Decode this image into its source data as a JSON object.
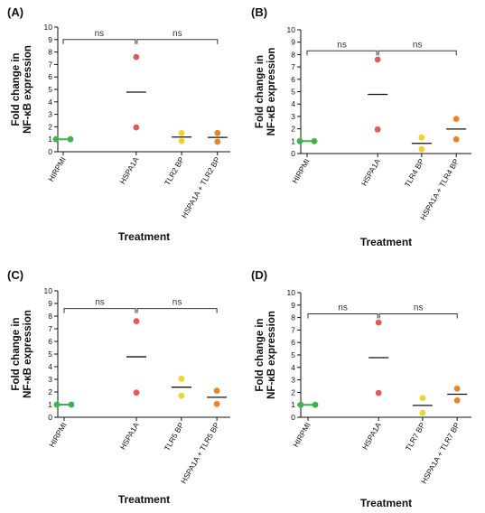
{
  "colors": {
    "HIRPMI": "#3cb44b",
    "HSPA1A": "#e05a5a",
    "TLR": "#f2d230",
    "COMBO": "#e8852a"
  },
  "chart_data": [
    {
      "type": "scatter",
      "panel": "(A)",
      "ylabel": "Fold change in NF-κB expression",
      "xlabel": "Treatment",
      "ylim": [
        0,
        10
      ],
      "yticks": [
        "0",
        "1",
        "2",
        "3",
        "4",
        "5",
        "6",
        "7",
        "8",
        "9",
        "10"
      ],
      "categories": [
        "HIRPMI",
        "HSPA1A",
        "TLR2 BP",
        "HSPA1A + TLR2 BP"
      ],
      "points": [
        [
          1.0,
          1.0
        ],
        [
          7.6,
          1.95
        ],
        [
          1.5,
          0.85
        ],
        [
          1.5,
          0.8
        ]
      ],
      "means": [
        1.0,
        4.78,
        1.18,
        1.15
      ],
      "brackets": [
        {
          "from": 0,
          "to": 1,
          "text": "ns"
        },
        {
          "from": 1,
          "to": 3,
          "text": "ns"
        }
      ],
      "bracket_level": 9.0
    },
    {
      "type": "scatter",
      "panel": "(B)",
      "ylabel": "Fold change in NF-κB expression",
      "xlabel": "Treatment",
      "ylim": [
        0,
        10
      ],
      "yticks": [
        "0",
        "1",
        "2",
        "3",
        "4",
        "5",
        "6",
        "7",
        "8",
        "9",
        "10"
      ],
      "categories": [
        "HIRPMI",
        "HSPA1A",
        "TLR4 BP",
        "HSPA1A + TLR4 BP"
      ],
      "points": [
        [
          1.0,
          1.0
        ],
        [
          7.6,
          1.95
        ],
        [
          1.3,
          0.35
        ],
        [
          2.8,
          1.15
        ]
      ],
      "means": [
        1.0,
        4.78,
        0.82,
        1.98
      ],
      "brackets": [
        {
          "from": 0,
          "to": 1,
          "text": "ns"
        },
        {
          "from": 1,
          "to": 3,
          "text": "ns"
        }
      ],
      "bracket_level": 8.3
    },
    {
      "type": "scatter",
      "panel": "(C)",
      "ylabel": "Fold change in NF-κB expression",
      "xlabel": "Treatment",
      "ylim": [
        0,
        10
      ],
      "yticks": [
        "0",
        "1",
        "2",
        "3",
        "4",
        "5",
        "6",
        "7",
        "8",
        "9",
        "10"
      ],
      "categories": [
        "HIRPMI",
        "HSPA1A",
        "TLR5 BP",
        "HSPA1A + TLR5 BP"
      ],
      "points": [
        [
          1.0,
          1.0
        ],
        [
          7.6,
          1.95
        ],
        [
          3.05,
          1.7
        ],
        [
          2.1,
          1.05
        ]
      ],
      "means": [
        1.0,
        4.78,
        2.38,
        1.58
      ],
      "brackets": [
        {
          "from": 0,
          "to": 1,
          "text": "ns"
        },
        {
          "from": 1,
          "to": 3,
          "text": "ns"
        }
      ],
      "bracket_level": 8.6
    },
    {
      "type": "scatter",
      "panel": "(D)",
      "ylabel": "Fold change in NF-κB expression",
      "xlabel": "Treatment",
      "ylim": [
        0,
        10
      ],
      "yticks": [
        "0",
        "1",
        "2",
        "3",
        "4",
        "5",
        "6",
        "7",
        "8",
        "9",
        "10"
      ],
      "categories": [
        "HIRPMI",
        "HSPA1A",
        "TLR7 BP",
        "HSPA1A + TLR7 BP"
      ],
      "points": [
        [
          1.0,
          1.0
        ],
        [
          7.6,
          1.95
        ],
        [
          1.55,
          0.35
        ],
        [
          2.3,
          1.35
        ]
      ],
      "means": [
        1.0,
        4.78,
        0.95,
        1.85
      ],
      "brackets": [
        {
          "from": 0,
          "to": 1,
          "text": "ns"
        },
        {
          "from": 1,
          "to": 3,
          "text": "ns"
        }
      ],
      "bracket_level": 8.3
    }
  ]
}
